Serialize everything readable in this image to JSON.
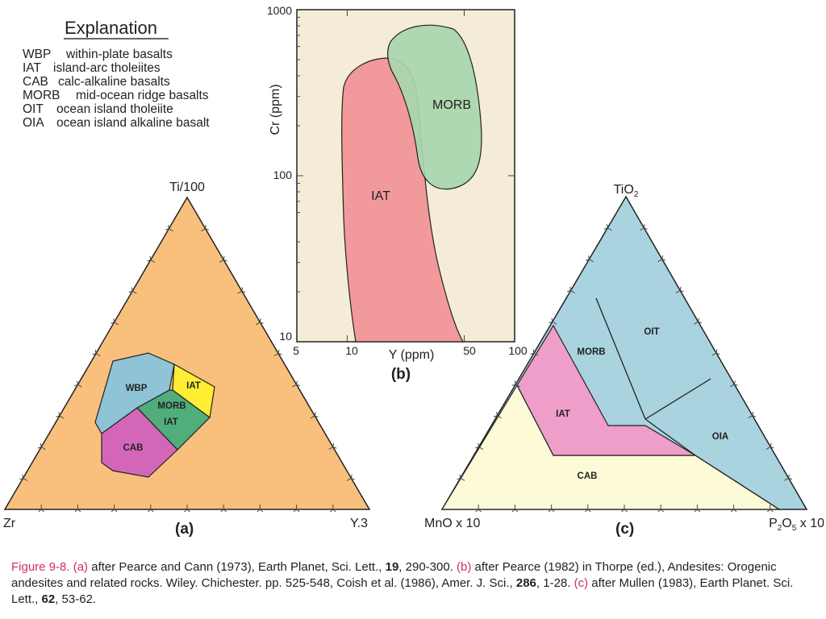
{
  "explanation": {
    "title": "Explanation",
    "items": [
      {
        "abbr": "WBP",
        "desc": "within-plate basalts"
      },
      {
        "abbr": "IAT",
        "desc": "island-arc tholeiites"
      },
      {
        "abbr": "CAB",
        "desc": "calc-alkaline basalts"
      },
      {
        "abbr": "MORB",
        "desc": "mid-ocean ridge basalts"
      },
      {
        "abbr": "OIT",
        "desc": "ocean island tholeiite"
      },
      {
        "abbr": "OIA",
        "desc": "ocean island alkaline basalt"
      }
    ]
  },
  "panel_a": {
    "label": "(a)",
    "apex_top": "Ti/100",
    "apex_left": "Zr",
    "apex_right": "Y.3",
    "fields": [
      "WBP",
      "MORB",
      "IAT",
      "IAT",
      "CAB"
    ],
    "colors": {
      "bg": "#f8c07c",
      "wbp": "#8fc3d6",
      "iat_top": "#ffee33",
      "morb_iat": "#4fae7c",
      "cab": "#d466b8"
    }
  },
  "panel_b": {
    "label": "(b)",
    "ylabel": "Cr (ppm)",
    "xlabel": "Y (ppm)",
    "xticks": [
      "5",
      "10",
      "50",
      "100"
    ],
    "yticks": [
      "1000",
      "100",
      "10"
    ],
    "fields": [
      "IAT",
      "MORB"
    ],
    "colors": {
      "bg": "#f4ecd6",
      "iat": "#f2999b",
      "morb": "#a8d6ad"
    }
  },
  "panel_c": {
    "label": "(c)",
    "apex_top": "TiO2",
    "apex_left": "MnO x 10",
    "apex_right": "P2O5 x 10",
    "fields": [
      "MORB",
      "OIT",
      "IAT",
      "OIA",
      "CAB"
    ],
    "colors": {
      "blue": "#a9d3df",
      "iat": "#ee9ec8",
      "cab": "#fdfad8"
    }
  },
  "caption": {
    "fig": "Figure 9-8.",
    "a": "(a)",
    "t1": " after Pearce and Cann (1973), Earth Planet, Sci. Lett., ",
    "v1": "19",
    "t2": ", 290-300. ",
    "b": "(b)",
    "t3": " after Pearce (1982) in Thorpe (ed.), Andesites: Orogenic andesites and related rocks. Wiley. Chichester. pp. 525-548, Coish et al. (1986), Amer. J. Sci., ",
    "v2": "286",
    "t4": ", 1-28. ",
    "c": "(c)",
    "t5": " after Mullen (1983), Earth Planet. Sci. Lett., ",
    "v3": "62",
    "t6": ", 53-62."
  }
}
